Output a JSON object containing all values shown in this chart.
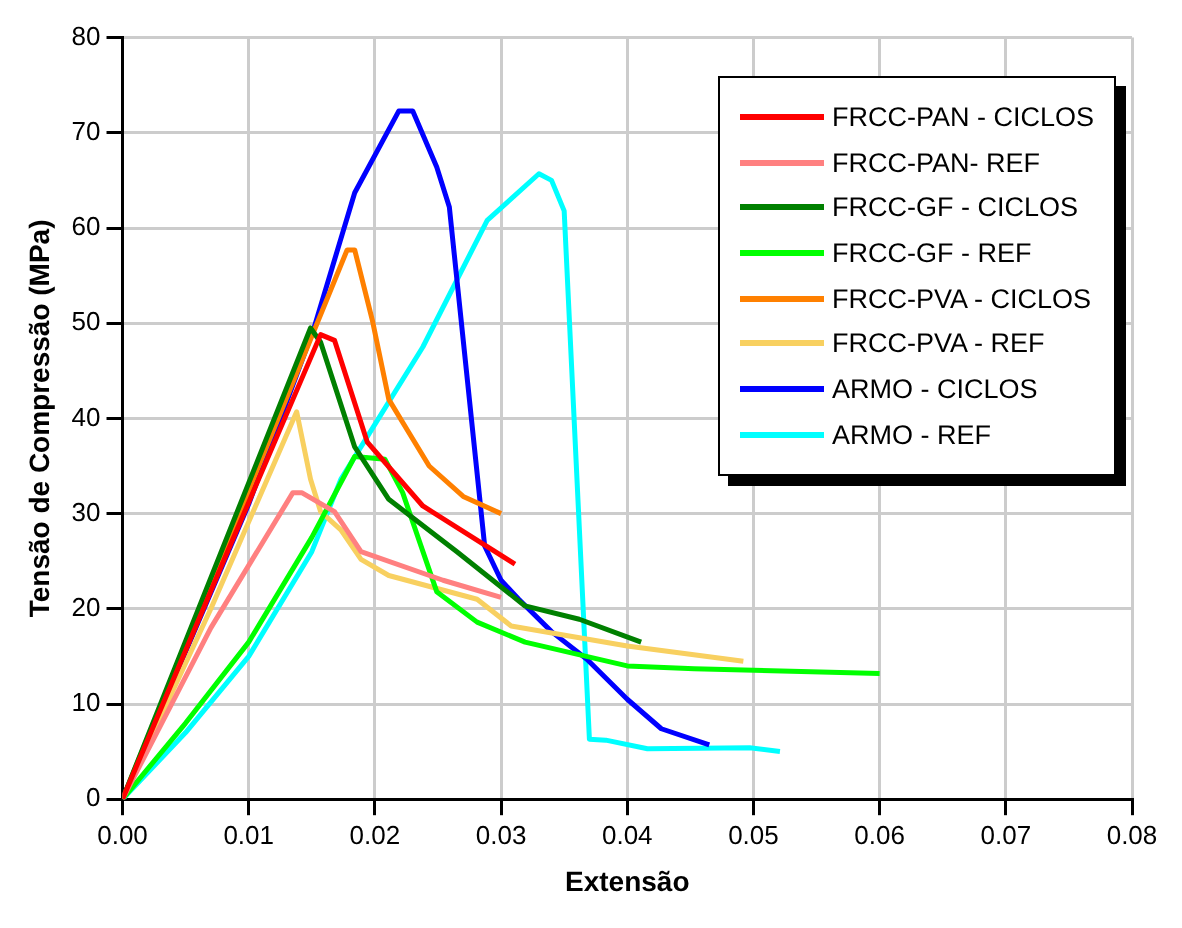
{
  "chart_data": {
    "type": "line",
    "xlabel": "Extensão",
    "ylabel": "Tensão de Compressão (MPa)",
    "xlim": [
      0,
      0.08
    ],
    "ylim": [
      0,
      80
    ],
    "xticks": [
      {
        "value": 0,
        "label": "0.00"
      },
      {
        "value": 0.01,
        "label": "0.01"
      },
      {
        "value": 0.02,
        "label": "0.02"
      },
      {
        "value": 0.03,
        "label": "0.03"
      },
      {
        "value": 0.04,
        "label": "0.04"
      },
      {
        "value": 0.05,
        "label": "0.05"
      },
      {
        "value": 0.06,
        "label": "0.06"
      },
      {
        "value": 0.07,
        "label": "0.07"
      },
      {
        "value": 0.08,
        "label": "0.08"
      }
    ],
    "yticks": [
      0,
      10,
      20,
      30,
      40,
      50,
      60,
      70,
      80
    ],
    "grid": true,
    "legend": "top right",
    "series": [
      {
        "name": "FRCC-PAN - CICLOS",
        "color": "#ff0000",
        "x": [
          0,
          0.008,
          0.0157,
          0.0168,
          0.0194,
          0.0238,
          0.0311
        ],
        "values": [
          0,
          25,
          48.8,
          48.2,
          37.5,
          30.8,
          24.7
        ]
      },
      {
        "name": "FRCC-PAN- REF",
        "color": "#ff8080",
        "x": [
          0,
          0.007,
          0.0135,
          0.0142,
          0.0168,
          0.0189,
          0.0254,
          0.03
        ],
        "values": [
          0,
          18,
          32.2,
          32.2,
          30.2,
          26,
          23,
          21.2
        ]
      },
      {
        "name": "FRCC-GF - CICLOS",
        "color": "#008000",
        "x": [
          0,
          0.0149,
          0.0157,
          0.0184,
          0.0211,
          0.0265,
          0.0319,
          0.0362,
          0.0411
        ],
        "values": [
          0,
          49.5,
          48,
          37,
          31.5,
          26,
          20.3,
          18.9,
          16.5
        ]
      },
      {
        "name": "FRCC-GF - REF",
        "color": "#00ff00",
        "x": [
          0,
          0.005,
          0.01,
          0.015,
          0.0184,
          0.0208,
          0.0222,
          0.0249,
          0.0281,
          0.0319,
          0.04,
          0.0453,
          0.06
        ],
        "values": [
          0,
          8,
          16.5,
          27.5,
          36,
          35.7,
          32.2,
          21.8,
          18.6,
          16.5,
          14,
          13.7,
          13.2
        ]
      },
      {
        "name": "FRCC-PVA - CICLOS",
        "color": "#ff8000",
        "x": [
          0,
          0.0178,
          0.0184,
          0.0198,
          0.0211,
          0.0227,
          0.0243,
          0.027,
          0.03
        ],
        "values": [
          0,
          57.7,
          57.7,
          50.3,
          42,
          38.5,
          35,
          31.8,
          30
        ]
      },
      {
        "name": "FRCC-PVA - REF",
        "color": "#f8d060",
        "x": [
          0,
          0.007,
          0.0138,
          0.0149,
          0.0157,
          0.0173,
          0.0189,
          0.0211,
          0.0281,
          0.0308,
          0.04,
          0.0492
        ],
        "values": [
          0,
          20,
          40.7,
          33.6,
          30.2,
          28.3,
          25.2,
          23.5,
          21,
          18.2,
          16.1,
          14.5
        ]
      },
      {
        "name": "ARMO - CICLOS",
        "color": "#0000ff",
        "x": [
          0,
          0.01,
          0.0152,
          0.0184,
          0.0219,
          0.023,
          0.0249,
          0.0259,
          0.0287,
          0.03,
          0.0314,
          0.034,
          0.0368,
          0.04,
          0.0427,
          0.0465
        ],
        "values": [
          0,
          31,
          49.6,
          63.7,
          72.3,
          72.3,
          66.4,
          62.2,
          26.6,
          23,
          21,
          17.6,
          14.7,
          10.5,
          7.4,
          5.7
        ]
      },
      {
        "name": "ARMO - REF",
        "color": "#00ffff",
        "x": [
          0,
          0.005,
          0.01,
          0.015,
          0.0173,
          0.0238,
          0.0289,
          0.033,
          0.034,
          0.035,
          0.037,
          0.0383,
          0.0416,
          0.0497,
          0.0521
        ],
        "values": [
          0,
          7,
          15,
          26,
          33.6,
          47.5,
          60.8,
          65.7,
          65,
          61.8,
          6.3,
          6.2,
          5.3,
          5.4,
          5.0
        ]
      }
    ]
  }
}
